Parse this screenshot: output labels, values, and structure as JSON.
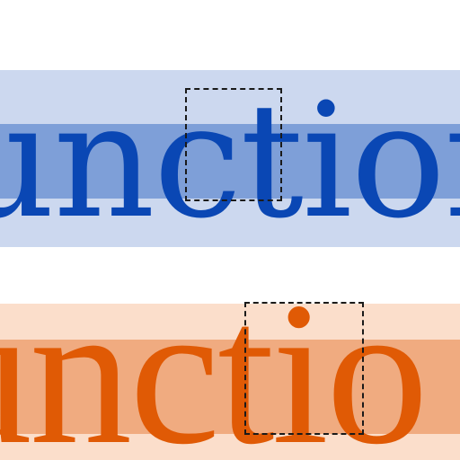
{
  "specimens": [
    {
      "word": "unction",
      "colors": {
        "text": "#0a47b4",
        "outer_band": "#ccd8ef",
        "inner_band": "#7e9fd8",
        "overlap": "#3f6fc3"
      },
      "highlight_style": "dashed"
    },
    {
      "word": "unctio",
      "colors": {
        "text": "#e05a05",
        "outer_band": "#fbdecb",
        "inner_band": "#f0ab80",
        "overlap": "#e8843e"
      },
      "highlight_style": "dashed"
    }
  ]
}
